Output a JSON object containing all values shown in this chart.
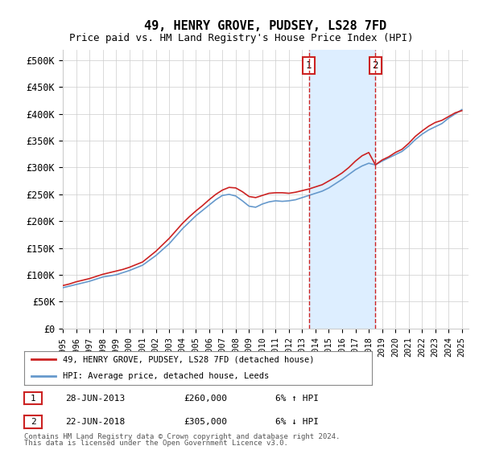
{
  "title": "49, HENRY GROVE, PUDSEY, LS28 7FD",
  "subtitle": "Price paid vs. HM Land Registry's House Price Index (HPI)",
  "ylabel_ticks": [
    0,
    50000,
    100000,
    150000,
    200000,
    250000,
    300000,
    350000,
    400000,
    450000,
    500000
  ],
  "ylabel_labels": [
    "£0",
    "£50K",
    "£100K",
    "£150K",
    "£200K",
    "£250K",
    "£300K",
    "£350K",
    "£400K",
    "£450K",
    "£500K"
  ],
  "xlim": [
    1995,
    2025.5
  ],
  "ylim": [
    0,
    520000
  ],
  "hpi_color": "#6699cc",
  "price_color": "#cc2222",
  "shade_color": "#ddeeff",
  "marker1_x": 2013.5,
  "marker2_x": 2018.5,
  "legend_line1": "49, HENRY GROVE, PUDSEY, LS28 7FD (detached house)",
  "legend_line2": "HPI: Average price, detached house, Leeds",
  "ann1_label": "1",
  "ann1_date": "28-JUN-2013",
  "ann1_price": "£260,000",
  "ann1_hpi": "6% ↑ HPI",
  "ann2_label": "2",
  "ann2_date": "22-JUN-2018",
  "ann2_price": "£305,000",
  "ann2_hpi": "6% ↓ HPI",
  "footnote1": "Contains HM Land Registry data © Crown copyright and database right 2024.",
  "footnote2": "This data is licensed under the Open Government Licence v3.0."
}
